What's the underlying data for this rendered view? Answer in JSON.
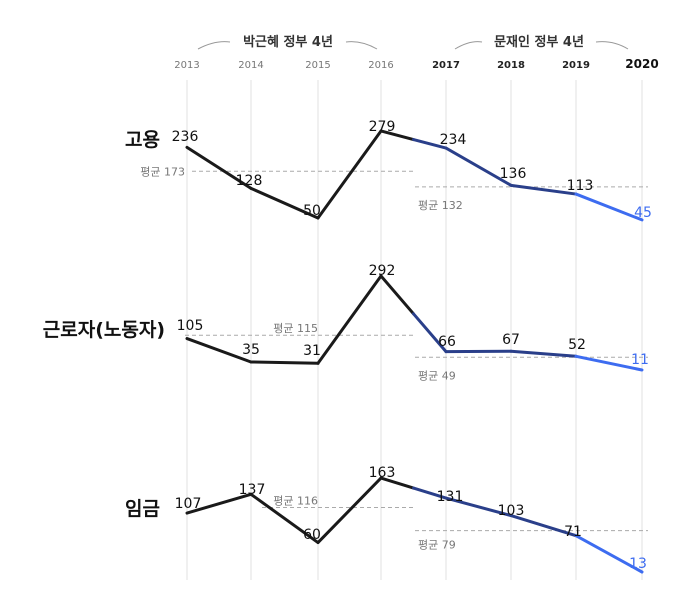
{
  "header": {
    "era_left": "박근혜 정부 4년",
    "era_right": "문재인 정부 4년"
  },
  "chart_data": {
    "type": "line",
    "x": [
      "2013",
      "2014",
      "2015",
      "2016",
      "2017",
      "2018",
      "2019",
      "2020"
    ],
    "panels": [
      {
        "title": "고용",
        "values": [
          236,
          128,
          50,
          279,
          234,
          136,
          113,
          45
        ],
        "averages": [
          {
            "period": "박근혜 정부 4년",
            "label": "평균 173",
            "value": 173
          },
          {
            "period": "문재인 정부 4년",
            "label": "평균 132",
            "value": 132
          }
        ]
      },
      {
        "title": "근로자(노동자)",
        "values": [
          105,
          35,
          31,
          292,
          66,
          67,
          52,
          11
        ],
        "averages": [
          {
            "period": "박근혜 정부 4년",
            "label": "평균 115",
            "value": 115
          },
          {
            "period": "문재인 정부 4년",
            "label": "평균 49",
            "value": 49
          }
        ]
      },
      {
        "title": "임금",
        "values": [
          107,
          137,
          60,
          163,
          131,
          103,
          71,
          13
        ],
        "averages": [
          {
            "period": "박근혜 정부 4년",
            "label": "평균 116",
            "value": 116
          },
          {
            "period": "문재인 정부 4년",
            "label": "평균 79",
            "value": 79
          }
        ]
      }
    ],
    "colors": {
      "early": "#1a1a1a",
      "mid": "#2a3f8a",
      "late": "#3d6cf0",
      "avg_line": "#aaaaaa",
      "grid": "#e2e2e2"
    },
    "grid": true,
    "legend": "none"
  }
}
